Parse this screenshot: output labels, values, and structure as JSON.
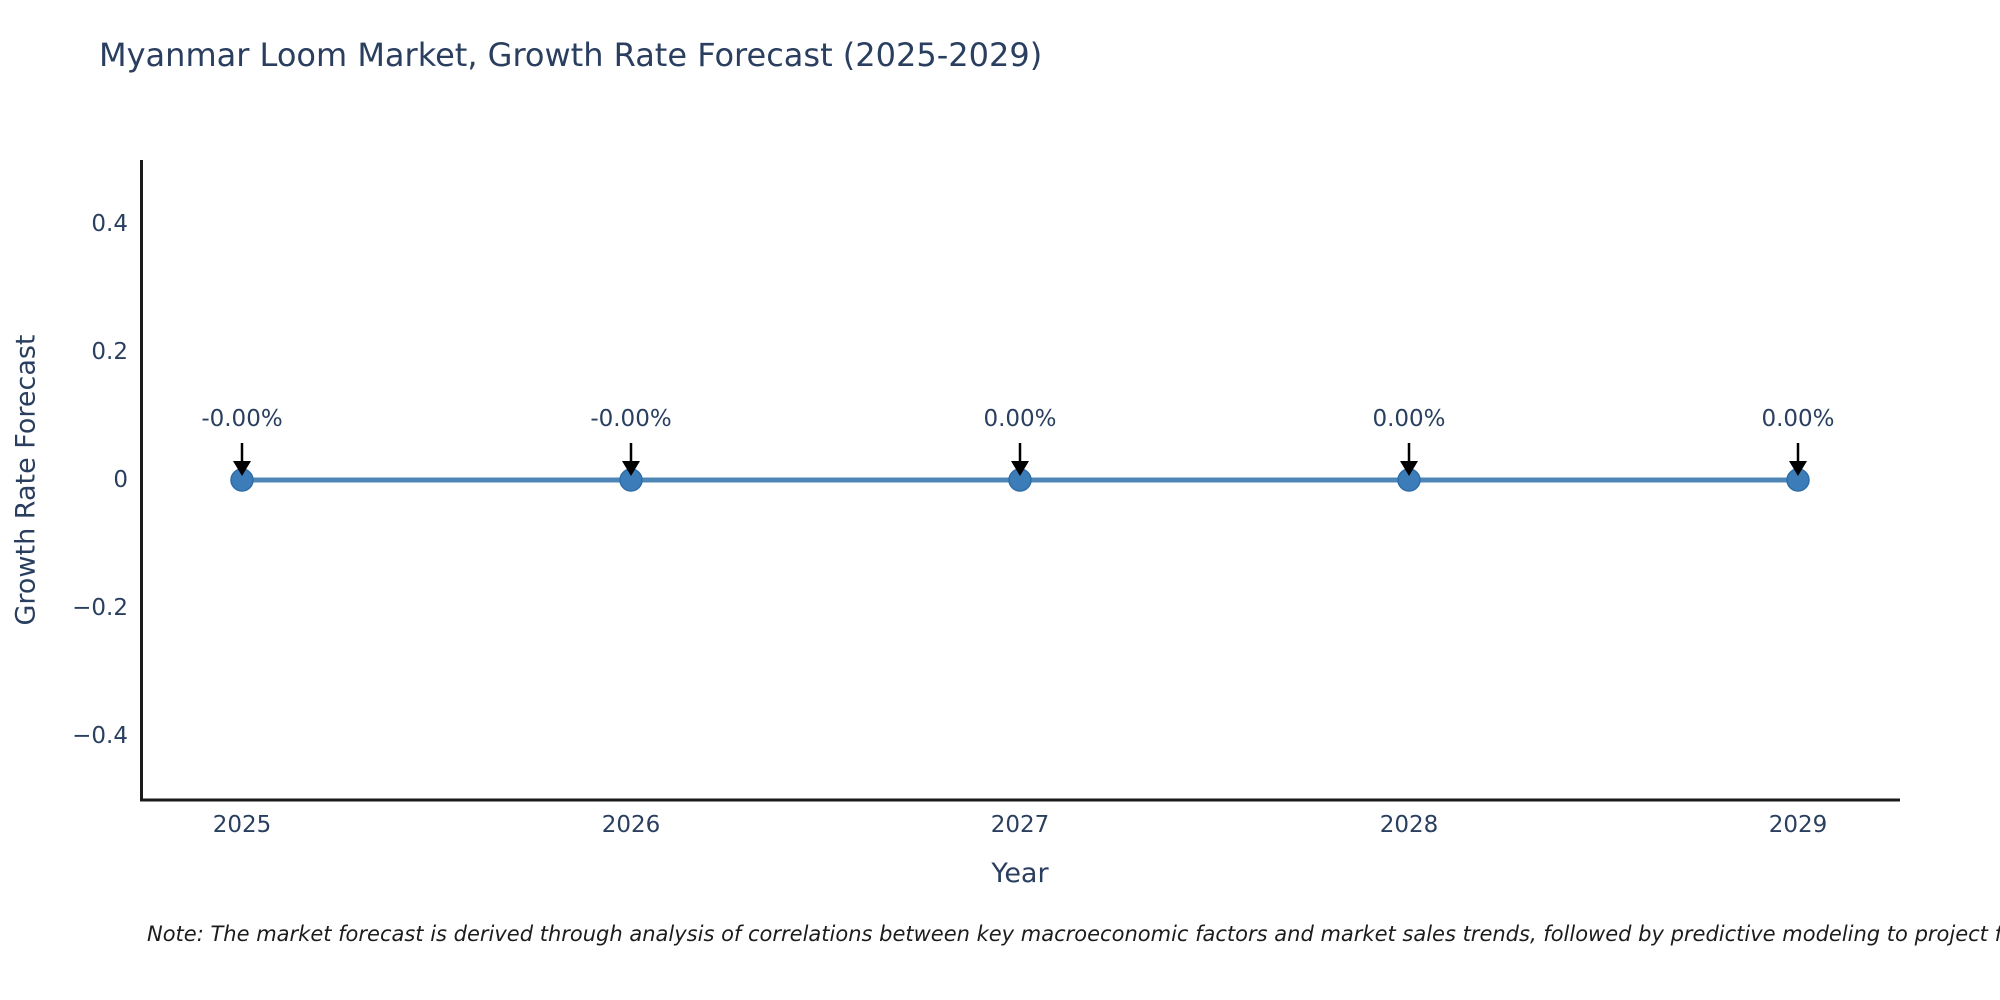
{
  "chart_data": {
    "type": "line",
    "title": "Myanmar Loom Market, Growth Rate Forecast (2025-2029)",
    "xlabel": "Year",
    "ylabel": "Growth Rate Forecast",
    "x": [
      2025,
      2026,
      2027,
      2028,
      2029
    ],
    "values": [
      0,
      0,
      0,
      0,
      0
    ],
    "point_labels": [
      "-0.00%",
      "-0.00%",
      "0.00%",
      "0.00%",
      "0.00%"
    ],
    "x_tick_labels": [
      "2025",
      "2026",
      "2027",
      "2028",
      "2029"
    ],
    "y_ticks": [
      0.4,
      0.2,
      0,
      -0.2,
      -0.4
    ],
    "y_tick_labels": [
      "0.4",
      "0.2",
      "0",
      "−0.2",
      "−0.4"
    ],
    "ylim": [
      -0.5,
      0.5
    ],
    "xlim": [
      2024.74,
      2029.26
    ],
    "grid": false,
    "legend_position": "none",
    "line_color": "#4e86b8",
    "marker_color": "#3c7cb8",
    "marker_edge_color": "#2f6ea8",
    "arrow_color": "#000000",
    "text_color": "#2a3f5f",
    "axis_color": "#1a1a1a"
  },
  "note": "Note: The market forecast is derived through analysis of correlations between key macroeconomic factors and market sales trends, followed by predictive modeling to project future sa"
}
